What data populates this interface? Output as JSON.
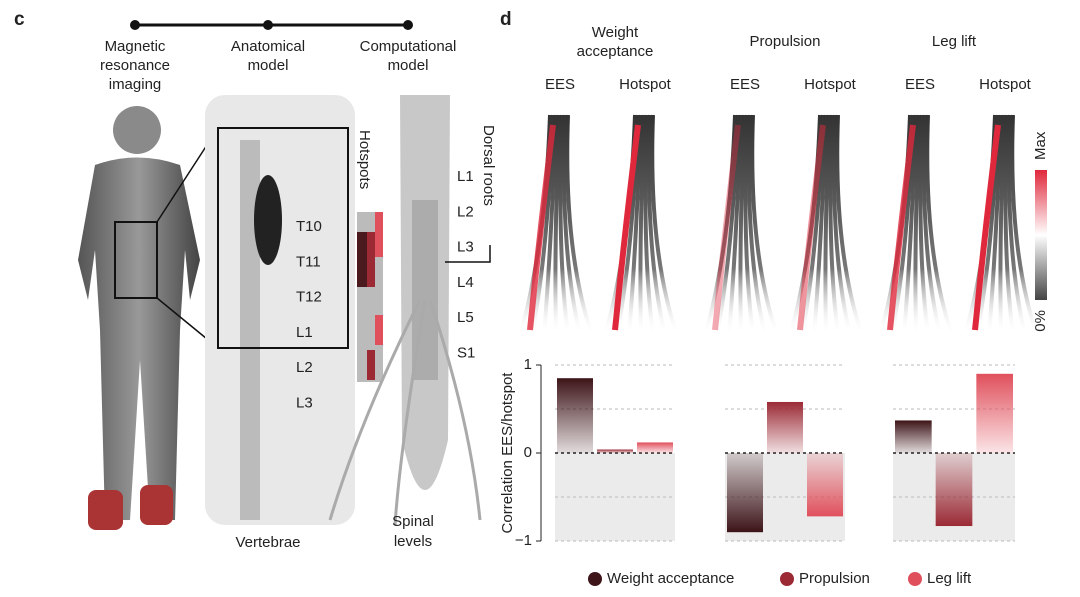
{
  "panel_c": {
    "label": "c",
    "stages": [
      [
        "Magnetic",
        "resonance",
        "imaging"
      ],
      [
        "Anatomical",
        "model"
      ],
      [
        "Computational",
        "model"
      ]
    ],
    "hotspots": "Hotspots",
    "dorsal_roots": "Dorsal roots",
    "vertebra_levels": [
      "T10",
      "T11",
      "T12",
      "L1",
      "L2",
      "L3"
    ],
    "spinal_levels": [
      "L1",
      "L2",
      "L3",
      "L4",
      "L5",
      "S1"
    ],
    "vertebrae": "Vertebrae",
    "spinal_levels_caption": [
      "Spinal",
      "levels"
    ]
  },
  "panel_d": {
    "label": "d",
    "map_labels": [
      "EES",
      "Hotspot"
    ],
    "colorbar": {
      "max": "Max",
      "min": "0%"
    }
  },
  "chart_data": {
    "type": "bar",
    "categories": [
      [
        "Weight",
        "acceptance"
      ],
      [
        "Propulsion"
      ],
      [
        "Leg lift"
      ]
    ],
    "y_label": "Correlation EES/hotspot",
    "series": [
      {
        "name": "Weight acceptance",
        "color": "#3d1418",
        "values": [
          0.85,
          -0.9,
          0.37
        ]
      },
      {
        "name": "Propulsion",
        "color": "#9b2a35",
        "values": [
          0.04,
          0.58,
          -0.83
        ]
      },
      {
        "name": "Leg lift",
        "color": "#e0505c",
        "values": [
          0.12,
          -0.72,
          0.9
        ]
      }
    ],
    "ylim": [
      -1,
      1
    ],
    "yticks": [
      {
        "value": -1,
        "label": "−1"
      },
      0,
      1
    ],
    "grid_lines": [
      -1,
      -0.5,
      0,
      0.5,
      1
    ]
  }
}
